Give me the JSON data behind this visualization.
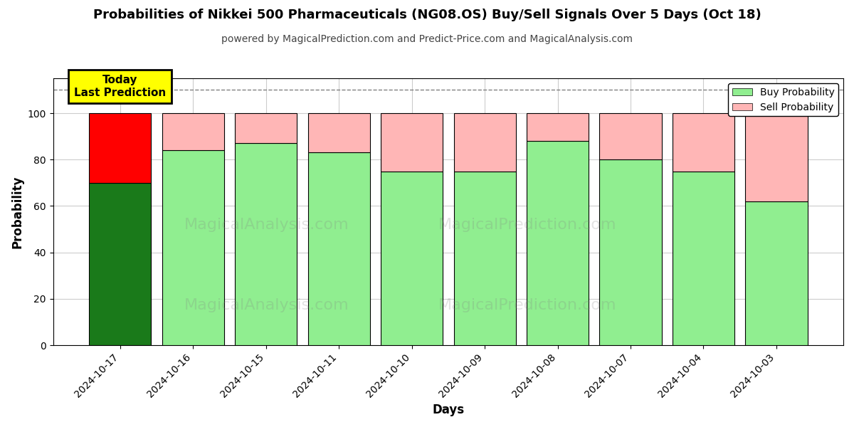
{
  "title": "Probabilities of Nikkei 500 Pharmaceuticals (NG08.OS) Buy/Sell Signals Over 5 Days (Oct 18)",
  "subtitle": "powered by MagicalPrediction.com and Predict-Price.com and MagicalAnalysis.com",
  "xlabel": "Days",
  "ylabel": "Probability",
  "categories": [
    "2024-10-17",
    "2024-10-16",
    "2024-10-15",
    "2024-10-11",
    "2024-10-10",
    "2024-10-09",
    "2024-10-08",
    "2024-10-07",
    "2024-10-04",
    "2024-10-03"
  ],
  "buy_values": [
    70,
    84,
    87,
    83,
    75,
    75,
    88,
    80,
    75,
    62
  ],
  "sell_values": [
    30,
    16,
    13,
    17,
    25,
    25,
    12,
    20,
    25,
    38
  ],
  "buy_color_today": "#1a7a1a",
  "sell_color_today": "#ff0000",
  "buy_color_normal": "#90ee90",
  "sell_color_normal": "#ffb6b6",
  "today_label_bg": "#ffff00",
  "today_label_text": "Today\nLast Prediction",
  "ylim": [
    0,
    115
  ],
  "yticks": [
    0,
    20,
    40,
    60,
    80,
    100
  ],
  "legend_buy": "Buy Probability",
  "legend_sell": "Sell Probability",
  "watermark1": "MagicalAnalysis.com",
  "watermark2": "MagicalPrediction.com",
  "dashed_line_y": 110,
  "background_color": "#ffffff",
  "grid_color": "#cccccc",
  "bar_width": 0.85
}
